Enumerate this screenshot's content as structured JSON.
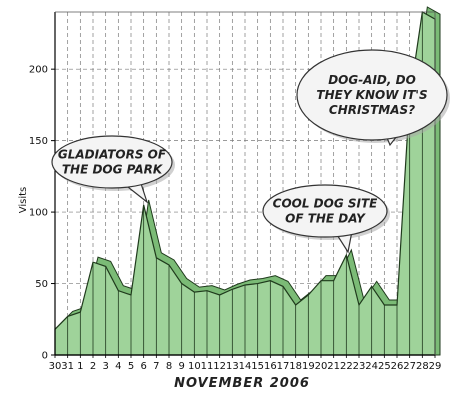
{
  "chart_data": {
    "type": "area",
    "title": "",
    "xlabel": "NOVEMBER 2006",
    "ylabel": "Visits",
    "ylim": [
      0,
      240
    ],
    "yticks": [
      0,
      50,
      100,
      150,
      200
    ],
    "grid": true,
    "categories": [
      "30",
      "31",
      "1",
      "2",
      "3",
      "4",
      "5",
      "6",
      "7",
      "8",
      "9",
      "10",
      "11",
      "12",
      "13",
      "14",
      "15",
      "16",
      "17",
      "18",
      "19",
      "20",
      "21",
      "22",
      "23",
      "24",
      "25",
      "26",
      "27",
      "28",
      "29"
    ],
    "values": [
      18,
      27,
      30,
      65,
      62,
      45,
      42,
      105,
      68,
      63,
      50,
      44,
      45,
      42,
      46,
      49,
      50,
      52,
      48,
      35,
      42,
      52,
      52,
      70,
      35,
      48,
      35,
      35,
      180,
      240,
      235
    ],
    "annotations": [
      {
        "lines": [
          "GLADIATORS OF",
          "THE DOG PARK"
        ],
        "points_to": "6"
      },
      {
        "lines": [
          "COOL DOG SITE",
          "OF THE DAY"
        ],
        "points_to": "22"
      },
      {
        "lines": [
          "DOG-AID, DO",
          "THEY KNOW IT'S",
          "CHRISTMAS?"
        ],
        "points_to": "28"
      }
    ]
  },
  "colors": {
    "fill": "#9fd39a",
    "fill_shadow": "#7bbb76",
    "stroke": "#1f3a1c",
    "grid": "#7a7a7a",
    "bubble_fill": "#f4f4f4",
    "bubble_stroke": "#333333"
  }
}
